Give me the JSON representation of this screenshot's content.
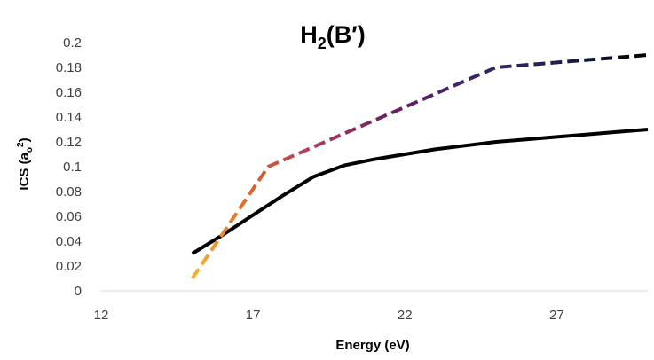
{
  "chart_data": {
    "type": "line",
    "title": {
      "base": "H",
      "sub": "2",
      "rest": "(B′)"
    },
    "xlabel": "Energy (eV)",
    "ylabel": {
      "prefix": "ICS (a",
      "sub": "o",
      "sup": "2",
      "suffix": ")"
    },
    "xlim": [
      12,
      30
    ],
    "ylim": [
      0,
      0.2
    ],
    "x_ticks": [
      "12",
      "17",
      "22",
      "27"
    ],
    "y_ticks": [
      "0",
      "0.02",
      "0.04",
      "0.06",
      "0.08",
      "0.1",
      "0.12",
      "0.14",
      "0.16",
      "0.18",
      "0.2"
    ],
    "grid": false,
    "legend": "none",
    "series": [
      {
        "name": "solid",
        "style": "solid",
        "color": "#000000",
        "x": [
          15,
          16,
          17,
          18,
          19,
          20,
          21,
          22,
          23,
          24,
          25,
          26,
          27,
          28,
          29,
          30
        ],
        "y": [
          0.03,
          0.045,
          0.061,
          0.077,
          0.092,
          0.101,
          0.106,
          0.11,
          0.114,
          0.117,
          0.12,
          0.122,
          0.124,
          0.126,
          0.128,
          0.13
        ]
      },
      {
        "name": "dashed",
        "style": "dashed",
        "gradient": [
          "#f5b52e",
          "#e06a2a",
          "#b03a5e",
          "#6a1f5e",
          "#3c2470",
          "#1c1f4e",
          "#000000"
        ],
        "x": [
          15,
          17.5,
          25,
          30
        ],
        "y": [
          0.01,
          0.1,
          0.18,
          0.19
        ]
      }
    ]
  }
}
